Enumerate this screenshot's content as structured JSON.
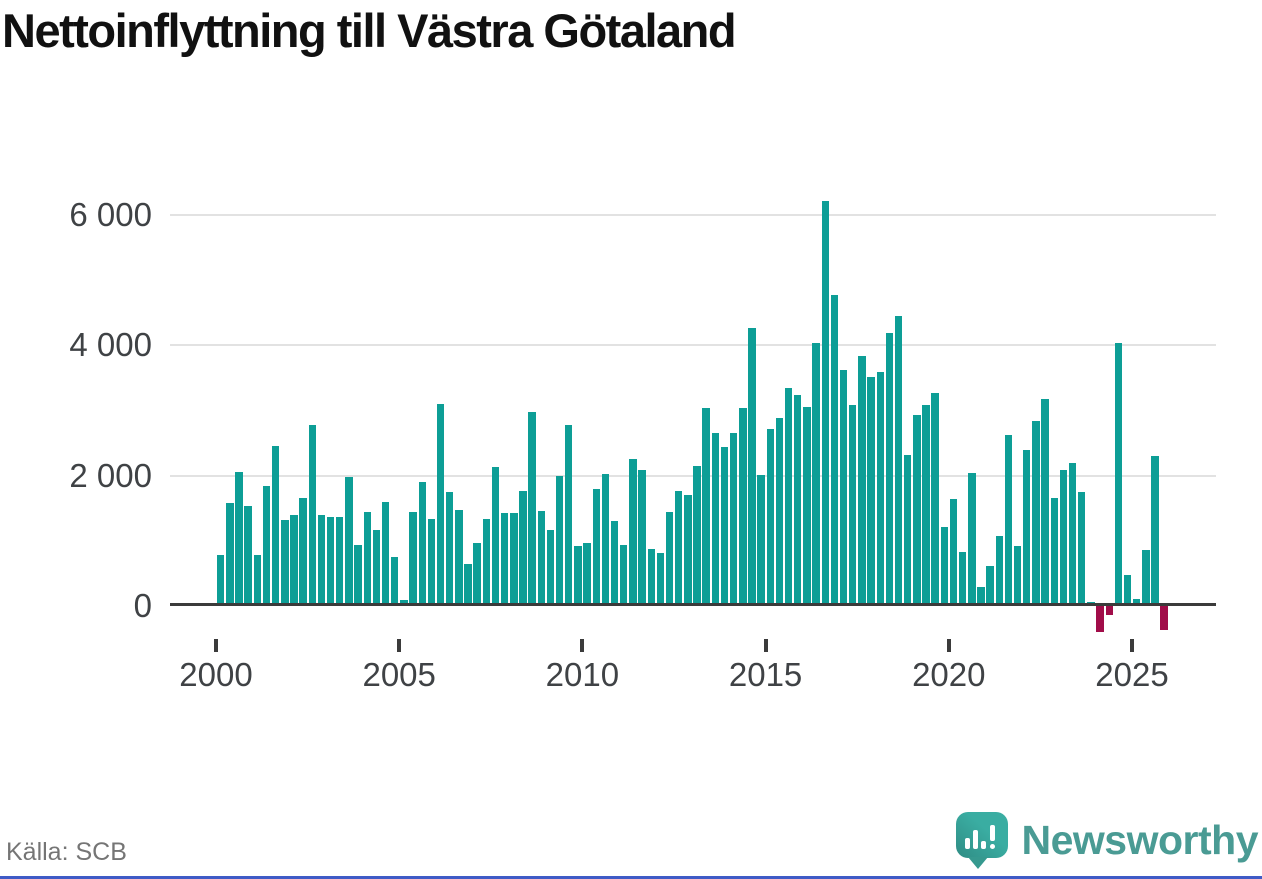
{
  "page": {
    "title": "Nettoinflyttning till Västra Götaland",
    "source": "Källa: SCB",
    "brand": "Newsworthy"
  },
  "colors": {
    "bar_positive": "#0d9e96",
    "bar_negative": "#a10d49",
    "gridline": "#e2e2e2",
    "axis": "#3b3b3b",
    "tick_text": "#3f4245",
    "title_text": "#111111",
    "source_text": "#757575",
    "brand_teal": "#4a9b94",
    "logo_bubble": "#3aa89d",
    "bottom_border": "#3f5bc6"
  },
  "chart_data": {
    "type": "bar",
    "title": "Nettoinflyttning till Västra Götaland",
    "frequency": "quarterly",
    "x_start": "2000Q1",
    "x_end": "2025Q4",
    "quarters": [
      "2000Q1",
      "2000Q2",
      "2000Q3",
      "2000Q4",
      "2001Q1",
      "2001Q2",
      "2001Q3",
      "2001Q4",
      "2002Q1",
      "2002Q2",
      "2002Q3",
      "2002Q4",
      "2003Q1",
      "2003Q2",
      "2003Q3",
      "2003Q4",
      "2004Q1",
      "2004Q2",
      "2004Q3",
      "2004Q4",
      "2005Q1",
      "2005Q2",
      "2005Q3",
      "2005Q4",
      "2006Q1",
      "2006Q2",
      "2006Q3",
      "2006Q4",
      "2007Q1",
      "2007Q2",
      "2007Q3",
      "2007Q4",
      "2008Q1",
      "2008Q2",
      "2008Q3",
      "2008Q4",
      "2009Q1",
      "2009Q2",
      "2009Q3",
      "2009Q4",
      "2010Q1",
      "2010Q2",
      "2010Q3",
      "2010Q4",
      "2011Q1",
      "2011Q2",
      "2011Q3",
      "2011Q4",
      "2012Q1",
      "2012Q2",
      "2012Q3",
      "2012Q4",
      "2013Q1",
      "2013Q2",
      "2013Q3",
      "2013Q4",
      "2014Q1",
      "2014Q2",
      "2014Q3",
      "2014Q4",
      "2015Q1",
      "2015Q2",
      "2015Q3",
      "2015Q4",
      "2016Q1",
      "2016Q2",
      "2016Q3",
      "2016Q4",
      "2017Q1",
      "2017Q2",
      "2017Q3",
      "2017Q4",
      "2018Q1",
      "2018Q2",
      "2018Q3",
      "2018Q4",
      "2019Q1",
      "2019Q2",
      "2019Q3",
      "2019Q4",
      "2020Q1",
      "2020Q2",
      "2020Q3",
      "2020Q4",
      "2021Q1",
      "2021Q2",
      "2021Q3",
      "2021Q4",
      "2022Q1",
      "2022Q2",
      "2022Q3",
      "2022Q4",
      "2023Q1",
      "2023Q2",
      "2023Q3",
      "2023Q4",
      "2024Q1",
      "2024Q2",
      "2024Q3",
      "2024Q4",
      "2025Q1",
      "2025Q2",
      "2025Q3",
      "2025Q4"
    ],
    "values": [
      780,
      1580,
      2060,
      1540,
      780,
      1840,
      2450,
      1320,
      1400,
      1660,
      2770,
      1390,
      1370,
      1370,
      1980,
      930,
      1440,
      1170,
      1600,
      750,
      90,
      1440,
      1900,
      1330,
      3100,
      1750,
      1480,
      650,
      970,
      1330,
      2130,
      1430,
      1430,
      1770,
      2980,
      1460,
      1170,
      2000,
      2770,
      920,
      970,
      1800,
      2020,
      1300,
      940,
      2250,
      2090,
      870,
      820,
      1440,
      1760,
      1710,
      2140,
      3040,
      2650,
      2440,
      2660,
      3040,
      4260,
      2010,
      2720,
      2880,
      3340,
      3230,
      3060,
      4040,
      6210,
      4770,
      3620,
      3090,
      3840,
      3520,
      3590,
      4180,
      4450,
      2320,
      2930,
      3090,
      3260,
      1210,
      1640,
      830,
      2040,
      290,
      610,
      1070,
      2630,
      920,
      2390,
      2830,
      3180,
      1650,
      2080,
      2190,
      1750,
      60,
      -400,
      -140,
      4030,
      470,
      100,
      860,
      2300,
      -370
    ],
    "x_tick_labels": [
      "2000",
      "2005",
      "2010",
      "2015",
      "2020",
      "2025"
    ],
    "x_tick_quarter_indexes": [
      0,
      20,
      40,
      60,
      80,
      100
    ],
    "y_ticks": [
      0,
      2000,
      4000,
      6000
    ],
    "y_tick_labels": [
      "0",
      "2 000",
      "4 000",
      "6 000"
    ],
    "ylim": [
      -500,
      6500
    ],
    "grid": "horizontal-light",
    "legend": "none"
  }
}
